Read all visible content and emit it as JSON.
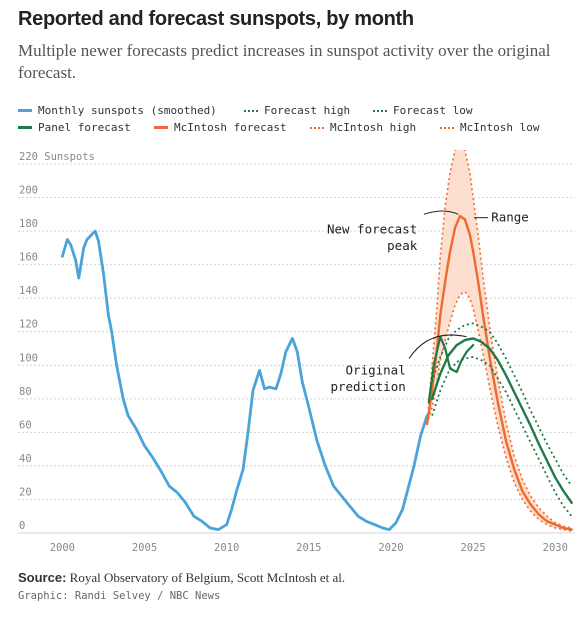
{
  "header": {
    "title": "Reported and forecast sunspots, by month",
    "subtitle": "Multiple newer forecasts predict increases in sunspot activity over the original forecast."
  },
  "legend": {
    "monthly": "Monthly sunspots (smoothed)",
    "forecast_high": "Forecast high",
    "forecast_low": "Forecast low",
    "panel": "Panel forecast",
    "mcintosh": "McIntosh forecast",
    "mcintosh_high": "McIntosh high",
    "mcintosh_low": "McIntosh low"
  },
  "colors": {
    "monthly": "#4aa3d9",
    "panel": "#1e7a46",
    "mcintosh": "#ef6a2e",
    "band": "#fbd9c6",
    "grid": "#d4d4d4",
    "axis_text": "#888888"
  },
  "footer": {
    "source_label": "Source:",
    "source_text": "Royal Observatory of Belgium, Scott McIntosh et al.",
    "credit": "Graphic: Randi Selvey / NBC News"
  },
  "chart_data": {
    "type": "line",
    "ylabel": "Sunspots",
    "xlim": [
      1997.3,
      2031.2
    ],
    "ylim": [
      0,
      220
    ],
    "yticks": [
      0,
      20,
      40,
      60,
      80,
      100,
      120,
      140,
      160,
      180,
      200,
      220
    ],
    "xticks": [
      2000,
      2005,
      2010,
      2015,
      2020,
      2025,
      2030
    ],
    "annotations": {
      "range": "Range",
      "new_peak_1": "New forecast",
      "new_peak_2": "peak",
      "original_1": "Original",
      "original_2": "prediction"
    },
    "series": [
      {
        "name": "Monthly sunspots (smoothed)",
        "x": [
          2000.0,
          2000.3,
          2000.5,
          2000.8,
          2001.0,
          2001.3,
          2001.5,
          2001.8,
          2002.0,
          2002.2,
          2002.5,
          2002.8,
          2003.0,
          2003.3,
          2003.7,
          2004.0,
          2004.5,
          2005.0,
          2005.5,
          2006.0,
          2006.5,
          2007.0,
          2007.5,
          2008.0,
          2008.5,
          2009.0,
          2009.5,
          2010.0,
          2010.3,
          2010.6,
          2011.0,
          2011.3,
          2011.6,
          2012.0,
          2012.3,
          2012.6,
          2013.0,
          2013.3,
          2013.6,
          2014.0,
          2014.3,
          2014.6,
          2015.0,
          2015.5,
          2016.0,
          2016.5,
          2017.0,
          2017.5,
          2018.0,
          2018.5,
          2019.0,
          2019.5,
          2019.9,
          2020.3,
          2020.7,
          2021.0,
          2021.4,
          2021.8,
          2022.2
        ],
        "values": [
          165,
          175,
          172,
          163,
          152,
          170,
          175,
          178,
          180,
          174,
          155,
          130,
          120,
          100,
          80,
          70,
          62,
          52,
          45,
          37,
          28,
          24,
          18,
          10,
          7,
          3,
          2,
          5,
          14,
          25,
          38,
          60,
          85,
          97,
          86,
          87,
          86,
          95,
          108,
          116,
          108,
          90,
          75,
          55,
          40,
          28,
          22,
          16,
          10,
          7,
          5,
          3,
          2,
          6,
          14,
          25,
          40,
          58,
          70
        ]
      },
      {
        "name": "Panel forecast",
        "x": [
          2022.5,
          2023.0,
          2023.5,
          2024.0,
          2024.5,
          2025.0,
          2025.5,
          2026.0,
          2026.5,
          2027.0,
          2027.5,
          2028.0,
          2028.5,
          2029.0,
          2029.5,
          2030.0,
          2030.5,
          2031.0
        ],
        "values": [
          80,
          95,
          106,
          112,
          115,
          116,
          114,
          110,
          103,
          94,
          84,
          74,
          64,
          53,
          43,
          33,
          25,
          18
        ]
      },
      {
        "name": "Forecast high",
        "x": [
          2022.5,
          2023.0,
          2023.5,
          2024.0,
          2024.5,
          2025.0,
          2025.5,
          2026.0,
          2026.5,
          2027.0,
          2027.5,
          2028.0,
          2028.5,
          2029.0,
          2029.5,
          2030.0,
          2030.5,
          2031.0
        ],
        "values": [
          90,
          105,
          116,
          121,
          124,
          125,
          123,
          120,
          113,
          104,
          94,
          84,
          73,
          63,
          53,
          44,
          35,
          28
        ]
      },
      {
        "name": "Forecast low",
        "x": [
          2022.5,
          2023.0,
          2023.5,
          2024.0,
          2024.5,
          2025.0,
          2025.5,
          2026.0,
          2026.5,
          2027.0,
          2027.5,
          2028.0,
          2028.5,
          2029.0,
          2029.5,
          2030.0,
          2030.5,
          2031.0
        ],
        "values": [
          70,
          85,
          96,
          102,
          104,
          105,
          103,
          100,
          92,
          84,
          74,
          64,
          54,
          44,
          34,
          24,
          16,
          10
        ]
      },
      {
        "name": "McIntosh forecast",
        "x": [
          2022.2,
          2022.5,
          2022.8,
          2023.0,
          2023.3,
          2023.6,
          2023.9,
          2024.2,
          2024.5,
          2024.8,
          2025.0,
          2025.3,
          2025.6,
          2026.0,
          2026.5,
          2027.0,
          2027.5,
          2028.0,
          2028.5,
          2029.0,
          2029.5,
          2030.0,
          2030.5,
          2031.0
        ],
        "values": [
          65,
          85,
          110,
          130,
          150,
          168,
          182,
          189,
          187,
          178,
          168,
          150,
          130,
          105,
          78,
          55,
          38,
          25,
          17,
          11,
          7,
          5,
          3,
          2
        ]
      },
      {
        "name": "McIntosh high",
        "x": [
          2022.2,
          2022.5,
          2022.8,
          2023.0,
          2023.3,
          2023.6,
          2023.9,
          2024.2,
          2024.5,
          2024.8,
          2025.0,
          2025.3,
          2025.6,
          2026.0,
          2026.5,
          2027.0,
          2027.5,
          2028.0,
          2028.5,
          2029.0,
          2029.5,
          2030.0,
          2030.5,
          2031.0
        ],
        "values": [
          65,
          100,
          135,
          165,
          195,
          215,
          228,
          232,
          228,
          215,
          200,
          178,
          153,
          123,
          92,
          66,
          46,
          32,
          22,
          15,
          10,
          6,
          4,
          3
        ]
      },
      {
        "name": "McIntosh low",
        "x": [
          2022.2,
          2022.5,
          2022.8,
          2023.0,
          2023.3,
          2023.6,
          2023.9,
          2024.2,
          2024.5,
          2024.8,
          2025.0,
          2025.3,
          2025.6,
          2026.0,
          2026.5,
          2027.0,
          2027.5,
          2028.0,
          2028.5,
          2029.0,
          2029.5,
          2030.0,
          2030.5,
          2031.0
        ],
        "values": [
          65,
          75,
          90,
          103,
          115,
          126,
          136,
          142,
          144,
          140,
          134,
          121,
          107,
          87,
          64,
          45,
          30,
          20,
          13,
          8,
          5,
          3,
          2,
          1
        ]
      },
      {
        "name": "Original prediction",
        "x": [
          2022.3,
          2022.6,
          2023.0,
          2023.3,
          2023.6,
          2024.0,
          2024.3,
          2024.6,
          2025.0
        ],
        "values": [
          78,
          100,
          117,
          110,
          98,
          96,
          103,
          108,
          112
        ]
      }
    ]
  }
}
